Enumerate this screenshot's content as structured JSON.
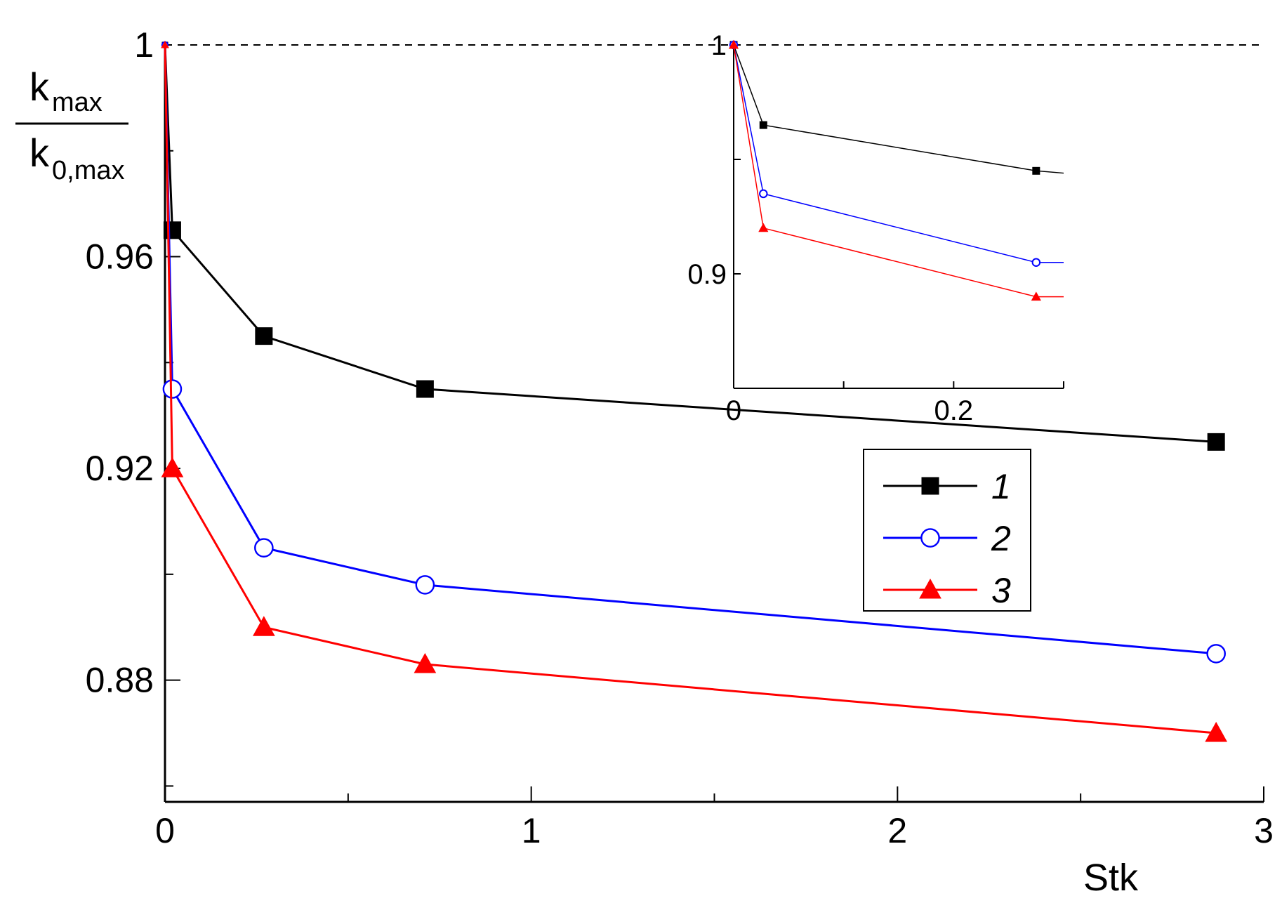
{
  "chart_data": [
    {
      "type": "line",
      "panel": "main",
      "xlabel": "Stk",
      "ylabel": {
        "numerator": "k",
        "numerator_sub": "max",
        "denominator": "k",
        "denominator_sub": "0,max"
      },
      "xlim": [
        0,
        3
      ],
      "ylim": [
        0.857,
        1.0
      ],
      "x_ticks": [
        0,
        1,
        2,
        3
      ],
      "x_tick_labels": [
        "0",
        "1",
        "2",
        "3"
      ],
      "y_ticks": [
        0.88,
        0.92,
        0.96,
        1
      ],
      "y_tick_labels": [
        "0.88",
        "0.92",
        "0.96",
        "1"
      ],
      "reference_line": {
        "y": 1,
        "style": "dashed"
      },
      "grid": false,
      "legend_placement": "center-right",
      "series": [
        {
          "name": "1",
          "color": "#000000",
          "marker": "filled-square",
          "x": [
            0,
            0.02,
            0.27,
            0.71,
            2.87
          ],
          "y": [
            1.0,
            0.965,
            0.945,
            0.935,
            0.925
          ]
        },
        {
          "name": "2",
          "color": "#0000ff",
          "marker": "open-circle",
          "x": [
            0,
            0.02,
            0.27,
            0.71,
            2.87
          ],
          "y": [
            1.0,
            0.935,
            0.905,
            0.898,
            0.885
          ]
        },
        {
          "name": "3",
          "color": "#ff0000",
          "marker": "filled-triangle",
          "x": [
            0,
            0.02,
            0.27,
            0.71,
            2.87
          ],
          "y": [
            1.0,
            0.92,
            0.89,
            0.883,
            0.87
          ]
        }
      ]
    },
    {
      "type": "line",
      "panel": "inset",
      "xlim": [
        0,
        0.3
      ],
      "ylim": [
        0.85,
        1.0
      ],
      "x_ticks": [
        0,
        0.2
      ],
      "x_tick_labels": [
        "0",
        "0.2"
      ],
      "y_ticks": [
        0.9,
        1
      ],
      "y_tick_labels": [
        "0.9",
        "1"
      ],
      "grid": false,
      "series": [
        {
          "name": "1",
          "color": "#000000",
          "marker": "filled-square",
          "x": [
            0,
            0.027,
            0.275,
            0.3
          ],
          "y": [
            1.0,
            0.965,
            0.945,
            0.944
          ]
        },
        {
          "name": "2",
          "color": "#0000ff",
          "marker": "open-circle",
          "x": [
            0,
            0.027,
            0.275,
            0.3
          ],
          "y": [
            1.0,
            0.935,
            0.905,
            0.905
          ]
        },
        {
          "name": "3",
          "color": "#ff0000",
          "marker": "filled-triangle",
          "x": [
            0,
            0.027,
            0.275,
            0.3
          ],
          "y": [
            1.0,
            0.92,
            0.89,
            0.89
          ]
        }
      ]
    }
  ],
  "legend": {
    "entries": [
      "1",
      "2",
      "3"
    ]
  }
}
